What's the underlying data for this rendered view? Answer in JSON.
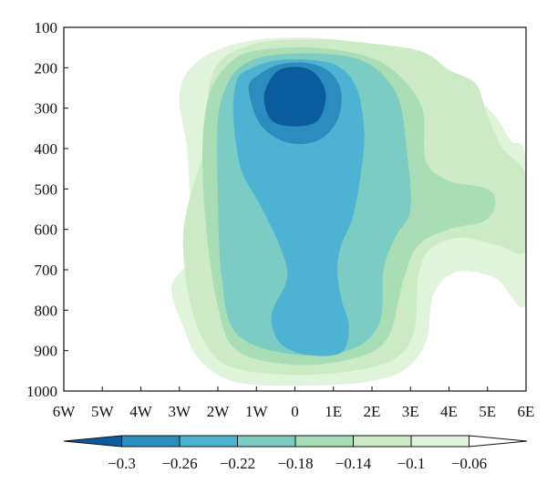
{
  "chart_data": {
    "type": "heatmap",
    "y_ticks": [
      "100",
      "200",
      "300",
      "400",
      "500",
      "600",
      "700",
      "800",
      "900",
      "1000"
    ],
    "x_ticks": [
      "6W",
      "5W",
      "4W",
      "3W",
      "2W",
      "1W",
      "0",
      "1E",
      "2E",
      "3E",
      "4E",
      "5E",
      "6E"
    ],
    "xlim": [
      -6,
      6
    ],
    "ylim": [
      1000,
      100
    ],
    "levels": [
      -0.3,
      -0.26,
      -0.22,
      -0.18,
      -0.14,
      -0.1,
      -0.06
    ],
    "level_labels": [
      "−0.3",
      "−0.26",
      "−0.22",
      "−0.18",
      "−0.14",
      "−0.1",
      "−0.06"
    ],
    "colors": [
      "#0a5c9f",
      "#2b8cbe",
      "#4eb3d3",
      "#7bccc4",
      "#a8ddb5",
      "#ccebc5",
      "#e0f3db",
      "#ffffff"
    ],
    "contours": [
      {
        "level": -0.06,
        "points": [
          [
            -2.6,
            660
          ],
          [
            -3.2,
            740
          ],
          [
            -2.9,
            840
          ],
          [
            -2.5,
            920
          ],
          [
            -1.8,
            970
          ],
          [
            -1,
            985
          ],
          [
            0,
            987
          ],
          [
            1,
            985
          ],
          [
            2,
            975
          ],
          [
            2.8,
            950
          ],
          [
            3.4,
            880
          ],
          [
            3.6,
            760
          ],
          [
            4.2,
            705
          ],
          [
            5.2,
            720
          ],
          [
            6,
            780
          ],
          [
            6,
            430
          ],
          [
            5.6,
            380
          ],
          [
            5.2,
            320
          ],
          [
            4.6,
            270
          ],
          [
            4,
            250
          ],
          [
            3.6,
            210
          ],
          [
            2.7,
            165
          ],
          [
            1.5,
            135
          ],
          [
            0,
            125
          ],
          [
            -1.5,
            140
          ],
          [
            -2.6,
            190
          ],
          [
            -3,
            270
          ],
          [
            -2.8,
            400
          ],
          [
            -2.7,
            560
          ]
        ]
      },
      {
        "level": -0.1,
        "points": [
          [
            -2.5,
            450
          ],
          [
            -2.9,
            610
          ],
          [
            -2.7,
            790
          ],
          [
            -2.2,
            900
          ],
          [
            -1.5,
            945
          ],
          [
            0,
            960
          ],
          [
            1.5,
            950
          ],
          [
            2.6,
            920
          ],
          [
            3.1,
            850
          ],
          [
            3.2,
            720
          ],
          [
            3.5,
            650
          ],
          [
            4.3,
            620
          ],
          [
            5.3,
            640
          ],
          [
            6,
            650
          ],
          [
            6,
            470
          ],
          [
            5.4,
            400
          ],
          [
            5,
            320
          ],
          [
            4.7,
            240
          ],
          [
            4,
            205
          ],
          [
            3.3,
            160
          ],
          [
            2,
            140
          ],
          [
            0.5,
            130
          ],
          [
            -1,
            140
          ],
          [
            -2,
            190
          ],
          [
            -2.3,
            300
          ],
          [
            -2.3,
            410
          ]
        ]
      },
      {
        "level": -0.14,
        "points": [
          [
            -2.2,
            260
          ],
          [
            -2.4,
            400
          ],
          [
            -2.3,
            600
          ],
          [
            -2,
            790
          ],
          [
            -1.5,
            900
          ],
          [
            0,
            935
          ],
          [
            1.5,
            920
          ],
          [
            2.4,
            870
          ],
          [
            2.8,
            730
          ],
          [
            3.2,
            640
          ],
          [
            4,
            600
          ],
          [
            4.9,
            580
          ],
          [
            5.2,
            540
          ],
          [
            5,
            500
          ],
          [
            4,
            480
          ],
          [
            3.4,
            430
          ],
          [
            3.3,
            300
          ],
          [
            2.6,
            210
          ],
          [
            1.8,
            170
          ],
          [
            0.5,
            150
          ],
          [
            -0.8,
            155
          ],
          [
            -1.6,
            180
          ]
        ]
      },
      {
        "level": -0.18,
        "points": [
          [
            -1.7,
            230
          ],
          [
            -2,
            330
          ],
          [
            -2,
            520
          ],
          [
            -1.9,
            720
          ],
          [
            -1.5,
            860
          ],
          [
            0,
            910
          ],
          [
            1.5,
            895
          ],
          [
            2.2,
            830
          ],
          [
            2.3,
            700
          ],
          [
            2.6,
            620
          ],
          [
            3,
            550
          ],
          [
            2.9,
            400
          ],
          [
            2.7,
            280
          ],
          [
            2.2,
            210
          ],
          [
            1.5,
            175
          ],
          [
            0.5,
            165
          ],
          [
            -0.5,
            168
          ],
          [
            -1.2,
            185
          ]
        ]
      },
      {
        "level": -0.22,
        "points": [
          [
            -1.5,
            230
          ],
          [
            -1.6,
            320
          ],
          [
            -1.4,
            450
          ],
          [
            -0.9,
            540
          ],
          [
            -0.4,
            640
          ],
          [
            -0.2,
            720
          ],
          [
            -0.6,
            810
          ],
          [
            -0.4,
            880
          ],
          [
            0.3,
            910
          ],
          [
            1.2,
            905
          ],
          [
            1.4,
            840
          ],
          [
            1.2,
            770
          ],
          [
            1.1,
            700
          ],
          [
            1.2,
            640
          ],
          [
            1.5,
            570
          ],
          [
            1.7,
            470
          ],
          [
            1.8,
            360
          ],
          [
            1.6,
            250
          ],
          [
            1.1,
            195
          ],
          [
            0.3,
            180
          ],
          [
            -0.5,
            182
          ],
          [
            -1.1,
            200
          ]
        ]
      },
      {
        "level": -0.26,
        "points": [
          [
            -1.2,
            250
          ],
          [
            -0.9,
            340
          ],
          [
            -0.2,
            385
          ],
          [
            0.6,
            380
          ],
          [
            1.1,
            330
          ],
          [
            1.2,
            260
          ],
          [
            0.9,
            210
          ],
          [
            0.3,
            188
          ],
          [
            -0.4,
            192
          ],
          [
            -0.9,
            215
          ]
        ]
      },
      {
        "level": -0.3,
        "points": [
          [
            -0.8,
            270
          ],
          [
            -0.6,
            330
          ],
          [
            0,
            345
          ],
          [
            0.6,
            330
          ],
          [
            0.8,
            265
          ],
          [
            0.5,
            212
          ],
          [
            0,
            198
          ],
          [
            -0.5,
            212
          ]
        ]
      }
    ]
  }
}
